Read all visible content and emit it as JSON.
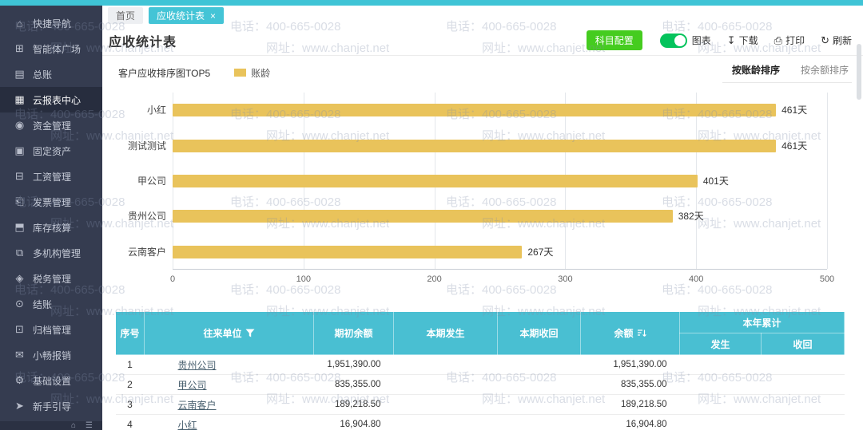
{
  "colors": {
    "accent_teal": "#44C4D6",
    "sidebar_bg": "#353C50",
    "bar_yellow": "#E9C35B",
    "table_header_teal": "#49BFD2",
    "button_green": "#45CC1F",
    "toggle_on_green": "#04C35C"
  },
  "watermark": {
    "phone": "电话：400-665-0028",
    "site": "网址：www.chanjet.net"
  },
  "sidebar": {
    "items": [
      {
        "name": "quick-nav",
        "icon": "⌂",
        "label": "快捷导航",
        "active": false
      },
      {
        "name": "agent-plaza",
        "icon": "⊞",
        "label": "智能体广场",
        "active": false
      },
      {
        "name": "general-ledger",
        "icon": "▤",
        "label": "总账",
        "active": false
      },
      {
        "name": "cloud-report-center",
        "icon": "▦",
        "label": "云报表中心",
        "active": true
      },
      {
        "name": "fund-management",
        "icon": "◉",
        "label": "资金管理",
        "active": false
      },
      {
        "name": "fixed-assets",
        "icon": "▣",
        "label": "固定资产",
        "active": false
      },
      {
        "name": "payroll-management",
        "icon": "⊟",
        "label": "工资管理",
        "active": false
      },
      {
        "name": "invoice-management",
        "icon": "⎗",
        "label": "发票管理",
        "active": false
      },
      {
        "name": "inventory-accounting",
        "icon": "⬒",
        "label": "库存核算",
        "active": false
      },
      {
        "name": "multi-org-management",
        "icon": "⧉",
        "label": "多机构管理",
        "active": false
      },
      {
        "name": "tax-management",
        "icon": "◈",
        "label": "税务管理",
        "active": false
      },
      {
        "name": "closing",
        "icon": "⊙",
        "label": "结账",
        "active": false
      },
      {
        "name": "archive-management",
        "icon": "⊡",
        "label": "归档管理",
        "active": false
      },
      {
        "name": "xiaochang-expense",
        "icon": "✉",
        "label": "小畅报销",
        "active": false
      },
      {
        "name": "basic-settings",
        "icon": "⚙",
        "label": "基础设置",
        "active": false
      },
      {
        "name": "novice-guide",
        "icon": "➤",
        "label": "新手引导",
        "active": false
      }
    ]
  },
  "tabs": [
    {
      "name": "home",
      "label": "首页",
      "active": false,
      "closable": false
    },
    {
      "name": "receivable-report",
      "label": "应收统计表",
      "active": true,
      "closable": true
    }
  ],
  "page": {
    "title": "应收统计表"
  },
  "toolbar": {
    "subject_config": "科目配置",
    "chart_toggle": "图表",
    "download": "下载",
    "print": "打印",
    "refresh": "刷新"
  },
  "chart_header": {
    "title": "客户应收排序图TOP5",
    "legend_label": "账龄",
    "sort_by_age": "按账龄排序",
    "sort_by_balance": "按余额排序"
  },
  "chart_data": {
    "type": "bar",
    "orientation": "horizontal",
    "title": "客户应收排序图TOP5",
    "legend": [
      "账龄"
    ],
    "legend_position": "top",
    "categories": [
      "小红",
      "测试测试",
      "甲公司",
      "贵州公司",
      "云南客户"
    ],
    "values": [
      461,
      461,
      401,
      382,
      267
    ],
    "unit": "天",
    "value_labels": [
      "461天",
      "461天",
      "401天",
      "382天",
      "267天"
    ],
    "xlim": [
      0,
      500
    ],
    "xticks": [
      0,
      100,
      200,
      300,
      400,
      500
    ],
    "bar_color": "#E9C35B",
    "grid": true
  },
  "table": {
    "header": {
      "index": "序号",
      "partner": "往来单位",
      "opening_balance": "期初余额",
      "current_occurred": "本期发生",
      "current_recovered": "本期收回",
      "balance": "余额",
      "year_total": "本年累计",
      "occurred": "发生",
      "recovered": "收回"
    },
    "rows": [
      {
        "index": "1",
        "partner": "贵州公司",
        "opening_balance": "1,951,390.00",
        "current_occurred": "",
        "current_recovered": "",
        "balance": "1,951,390.00",
        "year_occurred": "",
        "year_recovered": ""
      },
      {
        "index": "2",
        "partner": "甲公司",
        "opening_balance": "835,355.00",
        "current_occurred": "",
        "current_recovered": "",
        "balance": "835,355.00",
        "year_occurred": "",
        "year_recovered": ""
      },
      {
        "index": "3",
        "partner": "云南客户",
        "opening_balance": "189,218.50",
        "current_occurred": "",
        "current_recovered": "",
        "balance": "189,218.50",
        "year_occurred": "",
        "year_recovered": ""
      },
      {
        "index": "4",
        "partner": "小红",
        "opening_balance": "16,904.80",
        "current_occurred": "",
        "current_recovered": "",
        "balance": "16,904.80",
        "year_occurred": "",
        "year_recovered": ""
      }
    ]
  }
}
